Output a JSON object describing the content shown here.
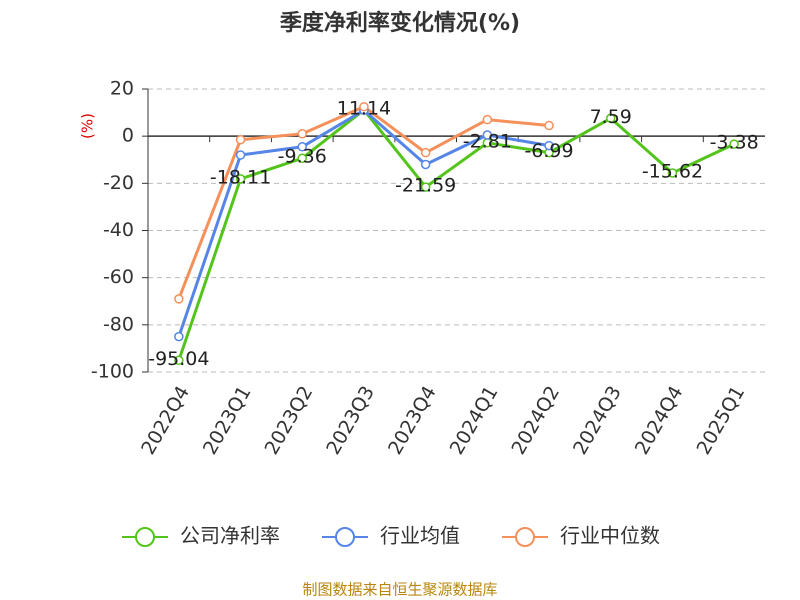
{
  "chart_data": {
    "type": "line",
    "title": "季度净利率变化情况(%)",
    "y_label": "(%)",
    "categories": [
      "2022Q4",
      "2023Q1",
      "2023Q2",
      "2023Q3",
      "2023Q4",
      "2024Q1",
      "2024Q2",
      "2024Q3",
      "2024Q4",
      "2025Q1"
    ],
    "series": [
      {
        "name": "公司净利率",
        "color": "#52c41a",
        "values": [
          -95.04,
          -18.11,
          -9.36,
          11.14,
          -21.59,
          -2.81,
          -6.99,
          7.59,
          -15.62,
          -3.38
        ]
      },
      {
        "name": "行业均值",
        "color": "#5585e6",
        "values": [
          -85,
          -8,
          -4.5,
          11,
          -12,
          0.5,
          -4,
          null,
          null,
          null
        ]
      },
      {
        "name": "行业中位数",
        "color": "#f5905a",
        "values": [
          -69,
          -1.5,
          1,
          12.5,
          -7,
          7,
          4.5,
          null,
          null,
          null
        ]
      }
    ],
    "ylim": [
      -100,
      20
    ],
    "yticks": [
      -100,
      -80,
      -60,
      -40,
      -20,
      0,
      20
    ],
    "grid": true,
    "source": "制图数据来自恒生聚源数据库"
  }
}
